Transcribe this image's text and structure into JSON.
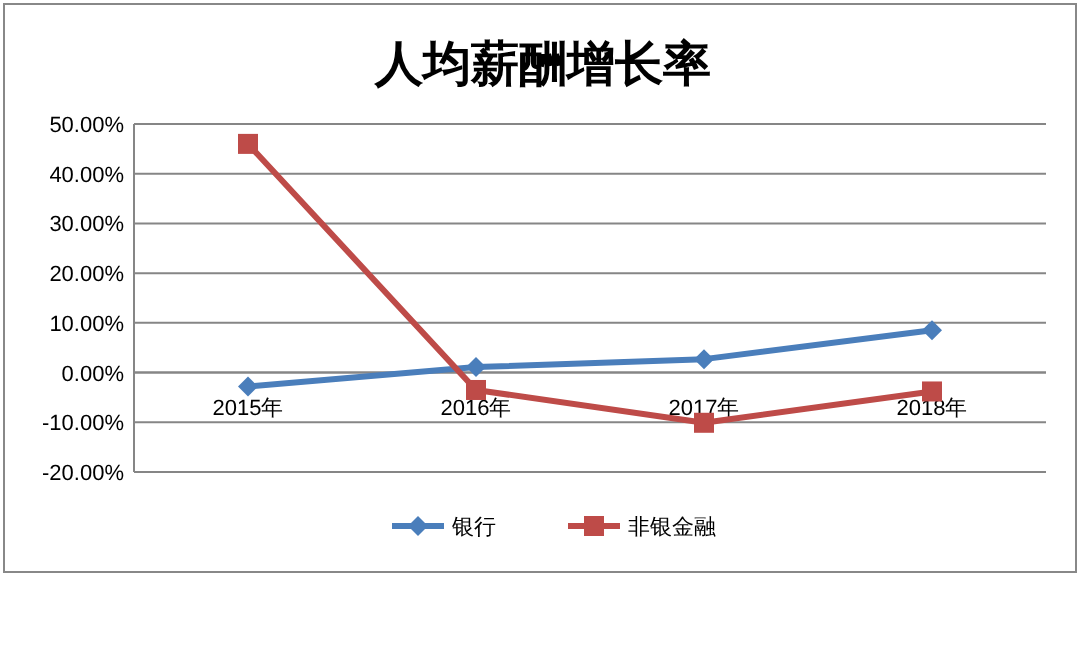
{
  "chart_data": {
    "type": "line",
    "title": "人均薪酬增长率",
    "categories": [
      "2015年",
      "2016年",
      "2017年",
      "2018年"
    ],
    "series": [
      {
        "name": "银行",
        "color": "#4a7ebb",
        "marker": "diamond",
        "values": [
          -2.8,
          1.1,
          2.7,
          8.5
        ]
      },
      {
        "name": "非银金融",
        "color": "#be4b48",
        "marker": "square",
        "values": [
          46,
          -3.5,
          -10.1,
          -3.8
        ]
      }
    ],
    "ylim": [
      -20,
      50
    ],
    "yticks": [
      {
        "value": -20,
        "label": "-20.00%"
      },
      {
        "value": -10,
        "label": "-10.00%"
      },
      {
        "value": 0,
        "label": "0.00%"
      },
      {
        "value": 10,
        "label": "10.00%"
      },
      {
        "value": 20,
        "label": "20.00%"
      },
      {
        "value": 30,
        "label": "30.00%"
      },
      {
        "value": 40,
        "label": "40.00%"
      },
      {
        "value": 50,
        "label": "50.00%"
      }
    ],
    "grid": "y",
    "legend": "bottom",
    "line_style": "solid"
  }
}
